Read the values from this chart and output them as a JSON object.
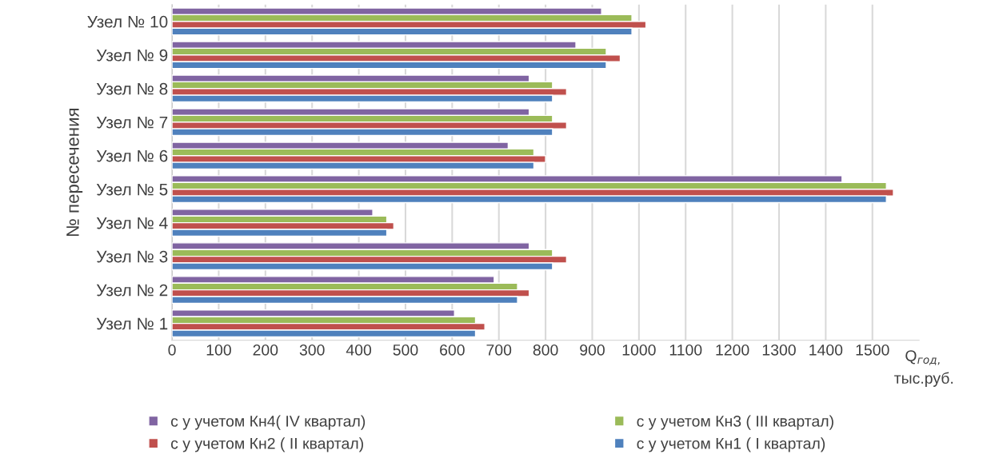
{
  "chart_data": {
    "type": "bar",
    "orientation": "horizontal",
    "categories": [
      "Узел № 10",
      "Узел № 9",
      "Узел № 8",
      "Узел № 7",
      "Узел № 6",
      "Узел № 5",
      "Узел № 4",
      "Узел № 3",
      "Узел № 2",
      "Узел № 1"
    ],
    "series": [
      {
        "name": "с у учетом Кн4( IV квартал)",
        "color": "#8064a2",
        "values": [
          920,
          865,
          765,
          765,
          720,
          1435,
          430,
          765,
          690,
          605
        ]
      },
      {
        "name": "с у учетом Кн3 ( III квартал)",
        "color": "#9bbb59",
        "values": [
          985,
          930,
          815,
          815,
          775,
          1530,
          460,
          815,
          740,
          650
        ]
      },
      {
        "name": "с у учетом Кн2 ( II квартал)",
        "color": "#c0504d",
        "values": [
          1015,
          960,
          845,
          845,
          800,
          1545,
          475,
          845,
          765,
          670
        ]
      },
      {
        "name": "с у учетом Кн1 ( I квартал)",
        "color": "#4f81bd",
        "values": [
          985,
          930,
          815,
          815,
          775,
          1530,
          460,
          815,
          740,
          650
        ]
      }
    ],
    "xlabel": "Q$_{год,}$\nтыс.руб.",
    "ylabel": "№ пересечения",
    "xlim": [
      0,
      1600
    ],
    "xticks": [
      0,
      100,
      200,
      300,
      400,
      500,
      600,
      700,
      800,
      900,
      1000,
      1100,
      1200,
      1300,
      1400,
      1500
    ],
    "grid": "x",
    "legend": "bottom"
  }
}
